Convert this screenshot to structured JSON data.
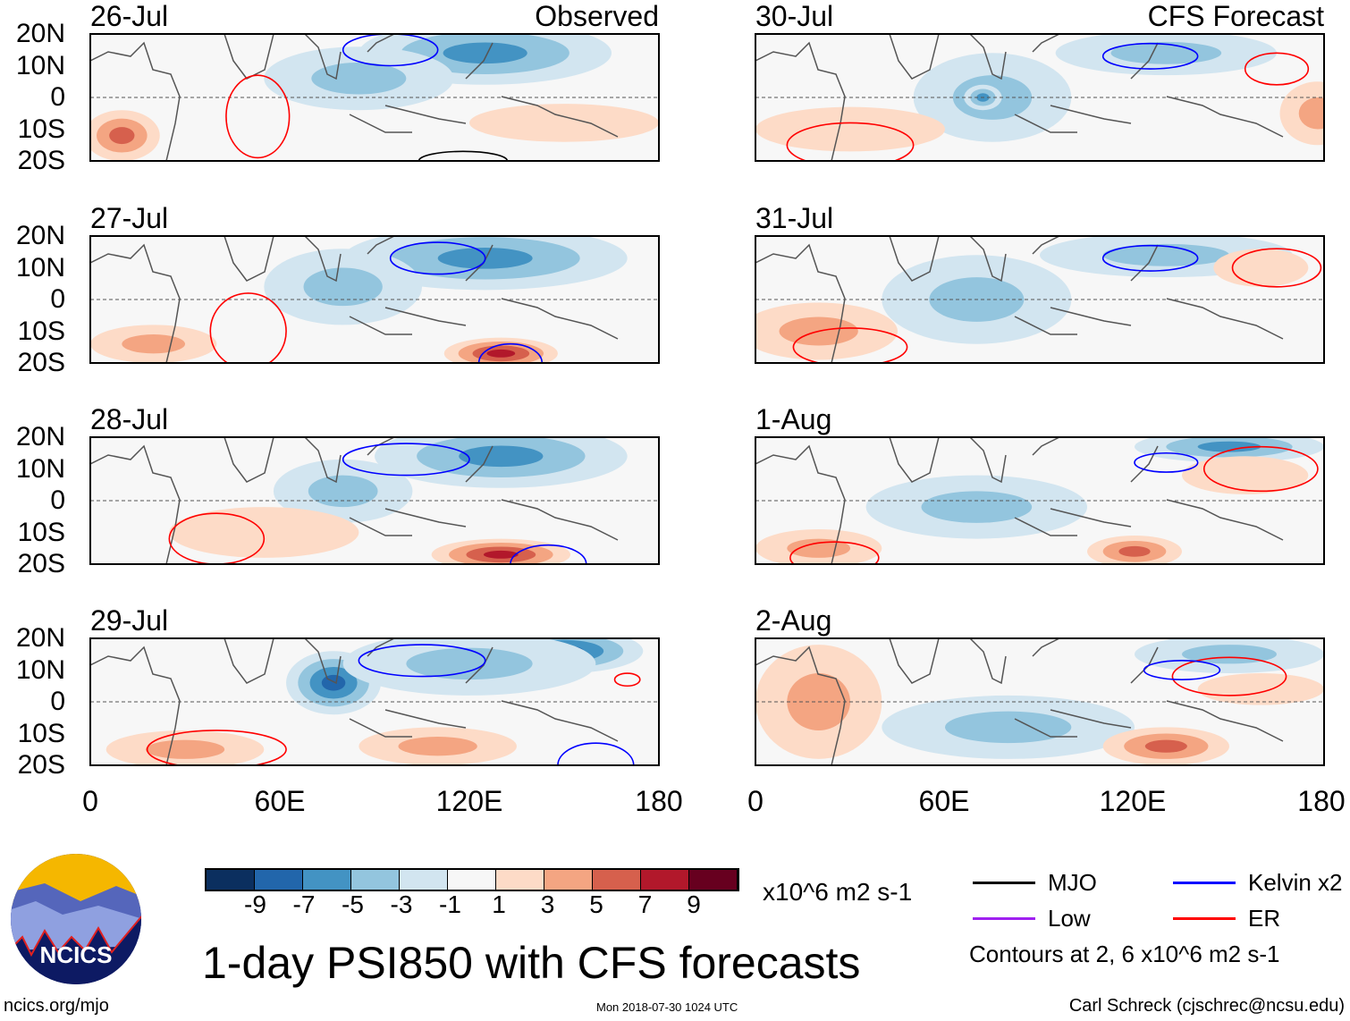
{
  "headers": {
    "left": "Observed",
    "right": "CFS Forecast"
  },
  "lat_labels": [
    "20N",
    "10N",
    "0",
    "10S",
    "20S"
  ],
  "lon_labels": [
    "0",
    "60E",
    "120E",
    "180"
  ],
  "chart_data": {
    "type": "map",
    "variable": "1-day PSI850 anomaly",
    "lon_range": [
      0,
      180
    ],
    "lat_range": [
      -20,
      20
    ],
    "panels": [
      {
        "date": "26-Jul",
        "col": 0,
        "row": 0,
        "features": [
          {
            "lon": 130,
            "lat": 16,
            "rl": 25,
            "rt": 8,
            "v": -9
          },
          {
            "lon": 125,
            "lat": 14,
            "rl": 40,
            "rt": 10,
            "v": -5
          },
          {
            "lon": 85,
            "lat": 6,
            "rl": 30,
            "rt": 10,
            "v": -3
          },
          {
            "lon": 10,
            "lat": -12,
            "rl": 12,
            "rt": 8,
            "v": 5
          },
          {
            "lon": 150,
            "lat": -8,
            "rl": 30,
            "rt": 6,
            "v": 2
          }
        ],
        "contours": [
          {
            "lon": 95,
            "lat": 15,
            "rl": 15,
            "rt": 5,
            "t": "kelvin"
          },
          {
            "lon": 53,
            "lat": -6,
            "rl": 10,
            "rt": 13,
            "t": "er"
          },
          {
            "lon": 118,
            "lat": -20,
            "rl": 14,
            "rt": 3,
            "t": "mjo"
          }
        ]
      },
      {
        "date": "27-Jul",
        "col": 0,
        "row": 1,
        "features": [
          {
            "lon": 130,
            "lat": 16,
            "rl": 25,
            "rt": 7,
            "v": -9
          },
          {
            "lon": 125,
            "lat": 13,
            "rl": 45,
            "rt": 10,
            "v": -5
          },
          {
            "lon": 80,
            "lat": 4,
            "rl": 25,
            "rt": 12,
            "v": -3
          },
          {
            "lon": 130,
            "lat": -17,
            "rl": 18,
            "rt": 5,
            "v": 7
          },
          {
            "lon": 20,
            "lat": -14,
            "rl": 20,
            "rt": 6,
            "v": 3
          }
        ],
        "contours": [
          {
            "lon": 110,
            "lat": 13,
            "rl": 15,
            "rt": 5,
            "t": "kelvin"
          },
          {
            "lon": 50,
            "lat": -10,
            "rl": 12,
            "rt": 12,
            "t": "er"
          },
          {
            "lon": 133,
            "lat": -20,
            "rl": 10,
            "rt": 6,
            "t": "kelvin"
          }
        ]
      },
      {
        "date": "28-Jul",
        "col": 0,
        "row": 2,
        "features": [
          {
            "lon": 145,
            "lat": 16,
            "rl": 20,
            "rt": 8,
            "v": -9
          },
          {
            "lon": 130,
            "lat": 14,
            "rl": 40,
            "rt": 10,
            "v": -5
          },
          {
            "lon": 80,
            "lat": 3,
            "rl": 22,
            "rt": 10,
            "v": -3
          },
          {
            "lon": 130,
            "lat": -17,
            "rl": 22,
            "rt": 5,
            "v": 7
          },
          {
            "lon": 55,
            "lat": -10,
            "rl": 30,
            "rt": 8,
            "v": 2
          }
        ],
        "contours": [
          {
            "lon": 100,
            "lat": 13,
            "rl": 20,
            "rt": 5,
            "t": "kelvin"
          },
          {
            "lon": 40,
            "lat": -12,
            "rl": 15,
            "rt": 8,
            "t": "er"
          },
          {
            "lon": 145,
            "lat": -20,
            "rl": 12,
            "rt": 6,
            "t": "kelvin"
          }
        ]
      },
      {
        "date": "29-Jul",
        "col": 0,
        "row": 3,
        "features": [
          {
            "lon": 150,
            "lat": 16,
            "rl": 25,
            "rt": 7,
            "v": -7
          },
          {
            "lon": 77,
            "lat": 6,
            "rl": 15,
            "rt": 10,
            "v": -7
          },
          {
            "lon": 120,
            "lat": 12,
            "rl": 40,
            "rt": 10,
            "v": -3
          },
          {
            "lon": 30,
            "lat": -15,
            "rl": 25,
            "rt": 6,
            "v": 3
          },
          {
            "lon": 110,
            "lat": -14,
            "rl": 25,
            "rt": 6,
            "v": 3
          }
        ],
        "contours": [
          {
            "lon": 105,
            "lat": 13,
            "rl": 20,
            "rt": 5,
            "t": "kelvin"
          },
          {
            "lon": 170,
            "lat": 7,
            "rl": 4,
            "rt": 2,
            "t": "er"
          },
          {
            "lon": 40,
            "lat": -15,
            "rl": 22,
            "rt": 6,
            "t": "er"
          },
          {
            "lon": 160,
            "lat": -20,
            "rl": 12,
            "rt": 7,
            "t": "kelvin"
          }
        ]
      },
      {
        "date": "30-Jul",
        "col": 1,
        "row": 0,
        "features": [
          {
            "lon": 75,
            "lat": 0,
            "rl": 25,
            "rt": 14,
            "v": -3
          },
          {
            "lon": 72,
            "lat": 0,
            "rl": 6,
            "rt": 4,
            "v": -5
          },
          {
            "lon": 130,
            "lat": 14,
            "rl": 35,
            "rt": 7,
            "v": -3
          },
          {
            "lon": 178,
            "lat": -5,
            "rl": 12,
            "rt": 10,
            "v": 3
          },
          {
            "lon": 30,
            "lat": -10,
            "rl": 30,
            "rt": 7,
            "v": 2
          }
        ],
        "contours": [
          {
            "lon": 125,
            "lat": 13,
            "rl": 15,
            "rt": 4,
            "t": "kelvin"
          },
          {
            "lon": 165,
            "lat": 9,
            "rl": 10,
            "rt": 5,
            "t": "er"
          },
          {
            "lon": 30,
            "lat": -15,
            "rl": 20,
            "rt": 7,
            "t": "er"
          }
        ]
      },
      {
        "date": "31-Jul",
        "col": 1,
        "row": 1,
        "features": [
          {
            "lon": 70,
            "lat": 0,
            "rl": 30,
            "rt": 14,
            "v": -3
          },
          {
            "lon": 130,
            "lat": 14,
            "rl": 40,
            "rt": 7,
            "v": -3
          },
          {
            "lon": 20,
            "lat": -10,
            "rl": 25,
            "rt": 9,
            "v": 3
          },
          {
            "lon": 160,
            "lat": 10,
            "rl": 15,
            "rt": 6,
            "v": 2
          }
        ],
        "contours": [
          {
            "lon": 125,
            "lat": 13,
            "rl": 15,
            "rt": 4,
            "t": "kelvin"
          },
          {
            "lon": 165,
            "lat": 10,
            "rl": 14,
            "rt": 6,
            "t": "er"
          },
          {
            "lon": 30,
            "lat": -15,
            "rl": 18,
            "rt": 6,
            "t": "er"
          }
        ]
      },
      {
        "date": "1-Aug",
        "col": 1,
        "row": 2,
        "features": [
          {
            "lon": 70,
            "lat": -2,
            "rl": 35,
            "rt": 10,
            "v": -3
          },
          {
            "lon": 150,
            "lat": 17,
            "rl": 30,
            "rt": 5,
            "v": -5
          },
          {
            "lon": 120,
            "lat": -16,
            "rl": 15,
            "rt": 5,
            "v": 5
          },
          {
            "lon": 20,
            "lat": -15,
            "rl": 20,
            "rt": 6,
            "v": 3
          },
          {
            "lon": 155,
            "lat": 8,
            "rl": 20,
            "rt": 6,
            "v": 2
          }
        ],
        "contours": [
          {
            "lon": 160,
            "lat": 10,
            "rl": 18,
            "rt": 7,
            "t": "er"
          },
          {
            "lon": 130,
            "lat": 12,
            "rl": 10,
            "rt": 3,
            "t": "kelvin"
          },
          {
            "lon": 25,
            "lat": -18,
            "rl": 14,
            "rt": 5,
            "t": "er"
          }
        ]
      },
      {
        "date": "2-Aug",
        "col": 1,
        "row": 3,
        "features": [
          {
            "lon": 80,
            "lat": -8,
            "rl": 40,
            "rt": 10,
            "v": -3
          },
          {
            "lon": 150,
            "lat": 15,
            "rl": 30,
            "rt": 6,
            "v": -3
          },
          {
            "lon": 20,
            "lat": 0,
            "rl": 20,
            "rt": 18,
            "v": 3
          },
          {
            "lon": 130,
            "lat": -14,
            "rl": 20,
            "rt": 6,
            "v": 5
          },
          {
            "lon": 160,
            "lat": 4,
            "rl": 20,
            "rt": 5,
            "v": 2
          }
        ],
        "contours": [
          {
            "lon": 150,
            "lat": 8,
            "rl": 18,
            "rt": 6,
            "t": "er"
          },
          {
            "lon": 135,
            "lat": 10,
            "rl": 12,
            "rt": 3,
            "t": "kelvin"
          }
        ]
      }
    ],
    "colorbar": {
      "colors": [
        "#0b2f5f",
        "#2266ab",
        "#4393c3",
        "#93c5de",
        "#d2e5f0",
        "#f7f7f7",
        "#fddbc7",
        "#f4a582",
        "#d6604d",
        "#b2182b",
        "#67001f"
      ],
      "labels": [
        "-9",
        "-7",
        "-5",
        "-3",
        "-1",
        "1",
        "3",
        "5",
        "7",
        "9"
      ],
      "units": "x10^6 m2 s-1"
    }
  },
  "contour_colors": {
    "mjo": "#000000",
    "kelvin": "#0000ff",
    "low": "#a020f0",
    "er": "#ff0000"
  },
  "legend": {
    "mjo": "MJO",
    "kelvin": "Kelvin x2",
    "low": "Low",
    "er": "ER",
    "note": "Contours at 2, 6 x10^6 m2 s-1"
  },
  "title": "1-day PSI850 with CFS forecasts",
  "logo_text": "NCICS",
  "footer": {
    "url": "ncics.org/mjo",
    "timestamp": "Mon 2018-07-30 1024 UTC",
    "author": "Carl Schreck (cjschrec@ncsu.edu)"
  }
}
